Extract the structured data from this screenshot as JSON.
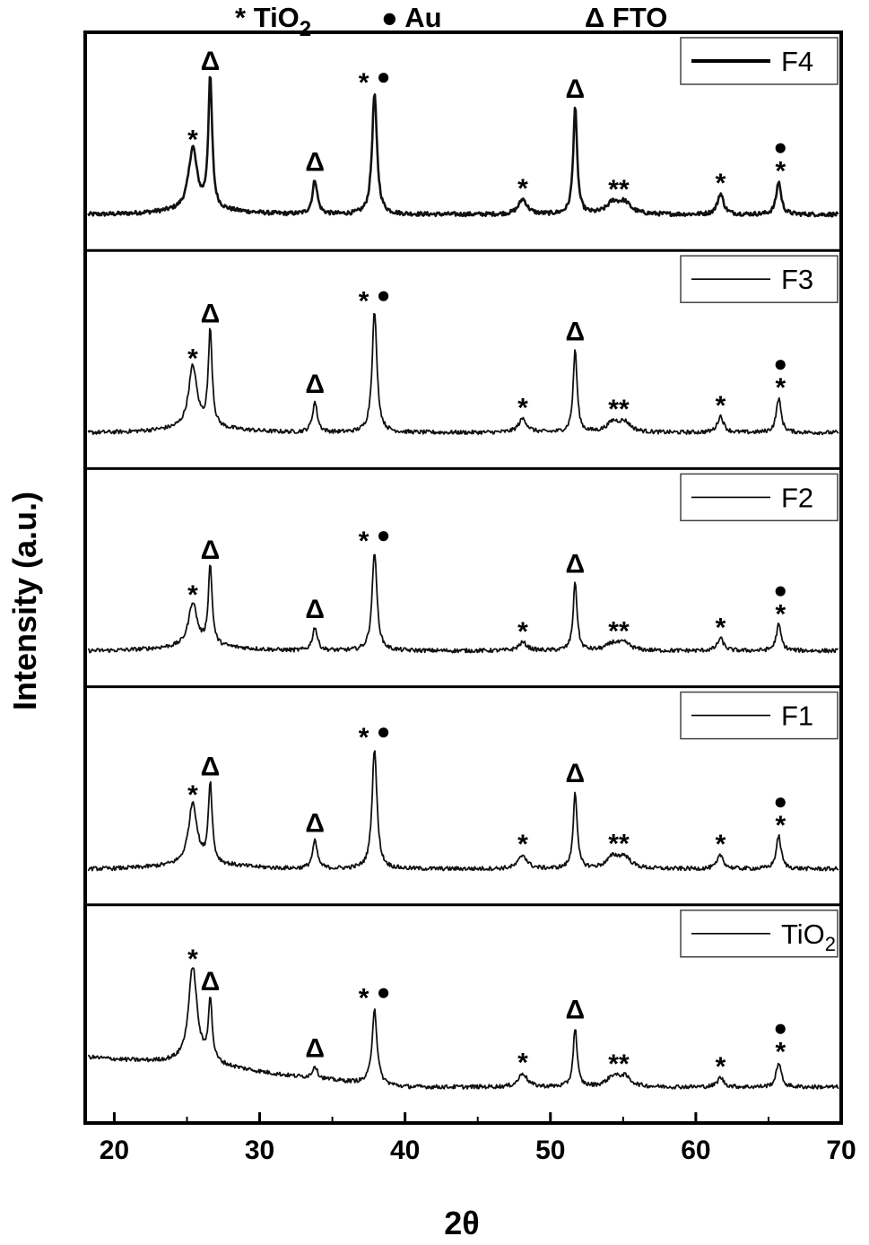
{
  "header_legend": [
    {
      "symbol": "*",
      "label": "TiO",
      "sub": "2"
    },
    {
      "symbol": "●",
      "label": "Au",
      "sub": ""
    },
    {
      "symbol": "Δ",
      "label": "FTO",
      "sub": ""
    }
  ],
  "chart_data": {
    "type": "line",
    "layout": "stacked-panels",
    "xlabel": "2θ",
    "ylabel": "Intensity (a.u.)",
    "xlim": [
      18,
      70
    ],
    "xticks": [
      20,
      30,
      40,
      50,
      60,
      70
    ],
    "y_ticks_shown": false,
    "marker_symbols": {
      "TiO2": "*",
      "Au": "●",
      "FTO": "Δ"
    },
    "peaks": [
      {
        "x": 25.4,
        "phase": "TiO2",
        "symbol": "*"
      },
      {
        "x": 26.6,
        "phase": "FTO",
        "symbol": "Δ"
      },
      {
        "x": 33.8,
        "phase": "FTO",
        "symbol": "Δ"
      },
      {
        "x": 37.9,
        "phase": "TiO2+Au",
        "symbol": "*●"
      },
      {
        "x": 48.1,
        "phase": "TiO2",
        "symbol": "*"
      },
      {
        "x": 51.7,
        "phase": "FTO",
        "symbol": "Δ"
      },
      {
        "x": 54.3,
        "phase": "TiO2",
        "symbol": "*"
      },
      {
        "x": 55.1,
        "phase": "TiO2",
        "symbol": "*"
      },
      {
        "x": 61.7,
        "phase": "TiO2",
        "symbol": "*"
      },
      {
        "x": 65.7,
        "phase": "TiO2+Au",
        "symbol": "*●"
      }
    ],
    "series": [
      {
        "name": "F4",
        "legend_sub": "",
        "heights": [
          0.45,
          0.95,
          0.25,
          0.88,
          0.11,
          0.78,
          0.08,
          0.08,
          0.15,
          0.24
        ],
        "baseline_drift": 0.0
      },
      {
        "name": "F3",
        "legend_sub": "",
        "heights": [
          0.45,
          0.7,
          0.22,
          0.88,
          0.1,
          0.6,
          0.07,
          0.07,
          0.12,
          0.25
        ],
        "baseline_drift": 0.0
      },
      {
        "name": "F2",
        "legend_sub": "",
        "heights": [
          0.32,
          0.58,
          0.17,
          0.72,
          0.06,
          0.5,
          0.05,
          0.05,
          0.09,
          0.19
        ],
        "baseline_drift": 0.0
      },
      {
        "name": "F1",
        "legend_sub": "",
        "heights": [
          0.45,
          0.58,
          0.2,
          0.88,
          0.1,
          0.56,
          0.08,
          0.08,
          0.1,
          0.24
        ],
        "baseline_drift": 0.0
      },
      {
        "name": "TiO",
        "legend_sub": "2",
        "heights": [
          0.7,
          0.45,
          0.09,
          0.55,
          0.1,
          0.43,
          0.07,
          0.07,
          0.07,
          0.18
        ],
        "baseline_drift": 0.22
      }
    ]
  }
}
